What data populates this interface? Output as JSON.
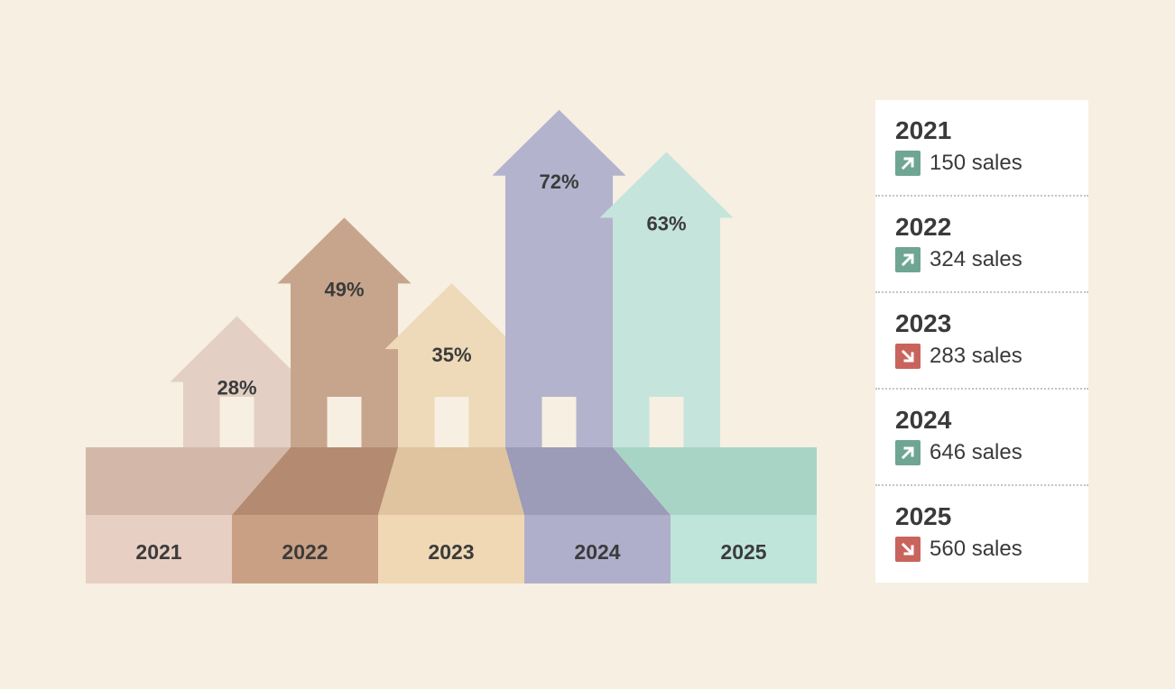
{
  "chart_data": {
    "type": "bar",
    "categories": [
      "2021",
      "2022",
      "2023",
      "2024",
      "2025"
    ],
    "values": [
      28,
      49,
      35,
      72,
      63
    ],
    "value_labels": [
      "28%",
      "49%",
      "35%",
      "72%",
      "63%"
    ],
    "ylim": [
      0,
      80
    ],
    "grid": false,
    "colors": {
      "front": [
        "#e8cfc3",
        "#c9a084",
        "#f0d8b4",
        "#b0afcb",
        "#bfe5da"
      ],
      "top": [
        "#d3b8aa",
        "#b48b70",
        "#dfc49f",
        "#9c9bb8",
        "#a8d4c5"
      ],
      "arrow": [
        "#e3cfc4",
        "#c7a58c",
        "#eed9b8",
        "#b3b3cd",
        "#c5e4dc"
      ],
      "window": "#f6efe2"
    }
  },
  "legend": {
    "items": [
      {
        "year": "2021",
        "sales": "150 sales",
        "trend": "up",
        "icon": "arrow-up-right-icon"
      },
      {
        "year": "2022",
        "sales": "324 sales",
        "trend": "up",
        "icon": "arrow-up-right-icon"
      },
      {
        "year": "2023",
        "sales": "283 sales",
        "trend": "down",
        "icon": "arrow-down-right-icon"
      },
      {
        "year": "2024",
        "sales": "646 sales",
        "trend": "up",
        "icon": "arrow-up-right-icon"
      },
      {
        "year": "2025",
        "sales": "560 sales",
        "trend": "down",
        "icon": "arrow-down-right-icon"
      }
    ],
    "trend_colors": {
      "up": "#6fa593",
      "down": "#c9645d"
    }
  }
}
